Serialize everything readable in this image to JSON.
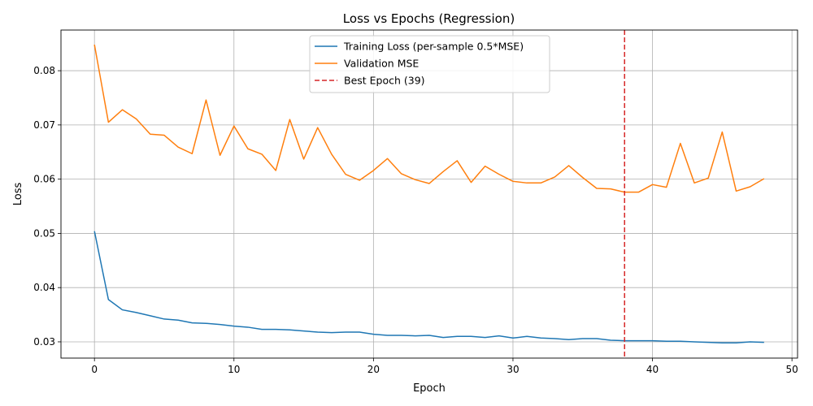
{
  "chart_data": {
    "type": "line",
    "title": "Loss vs Epochs (Regression)",
    "xlabel": "Epoch",
    "ylabel": "Loss",
    "xlim": [
      -2.4,
      50.4
    ],
    "ylim": [
      0.027,
      0.0875
    ],
    "xticks": [
      0,
      10,
      20,
      30,
      40,
      50
    ],
    "yticks": [
      0.03,
      0.04,
      0.05,
      0.06,
      0.07,
      0.08
    ],
    "ytick_labels": [
      "0.03",
      "0.04",
      "0.05",
      "0.06",
      "0.07",
      "0.08"
    ],
    "grid": true,
    "legend_position": "top-center",
    "x": [
      0,
      1,
      2,
      3,
      4,
      5,
      6,
      7,
      8,
      9,
      10,
      11,
      12,
      13,
      14,
      15,
      16,
      17,
      18,
      19,
      20,
      21,
      22,
      23,
      24,
      25,
      26,
      27,
      28,
      29,
      30,
      31,
      32,
      33,
      34,
      35,
      36,
      37,
      38,
      39,
      40,
      41,
      42,
      43,
      44,
      45,
      46,
      47,
      48
    ],
    "series": [
      {
        "name": "Training Loss (per-sample 0.5*MSE)",
        "color": "#1f77b4",
        "style": "solid",
        "values": [
          0.0504,
          0.0378,
          0.0359,
          0.0354,
          0.0348,
          0.0342,
          0.034,
          0.0335,
          0.0334,
          0.0332,
          0.0329,
          0.0327,
          0.0323,
          0.0323,
          0.0322,
          0.032,
          0.0318,
          0.0317,
          0.0318,
          0.0318,
          0.0314,
          0.0312,
          0.0312,
          0.0311,
          0.0312,
          0.0308,
          0.031,
          0.031,
          0.0308,
          0.0311,
          0.0307,
          0.031,
          0.0307,
          0.0306,
          0.0304,
          0.0306,
          0.0306,
          0.0303,
          0.0302,
          0.0302,
          0.0302,
          0.0301,
          0.0301,
          0.03,
          0.0299,
          0.0298,
          0.0298,
          0.03,
          0.0299
        ]
      },
      {
        "name": "Validation MSE",
        "color": "#ff7f0e",
        "style": "solid",
        "values": [
          0.0848,
          0.0705,
          0.0728,
          0.0711,
          0.0683,
          0.0681,
          0.0659,
          0.0647,
          0.0746,
          0.0644,
          0.0698,
          0.0656,
          0.0646,
          0.0616,
          0.071,
          0.0637,
          0.0695,
          0.0646,
          0.0609,
          0.0598,
          0.0616,
          0.0638,
          0.061,
          0.0599,
          0.0592,
          0.0614,
          0.0634,
          0.0594,
          0.0624,
          0.0609,
          0.0596,
          0.0593,
          0.0593,
          0.0604,
          0.0625,
          0.0603,
          0.0583,
          0.0582,
          0.0576,
          0.0576,
          0.059,
          0.0585,
          0.0666,
          0.0593,
          0.0602,
          0.0687,
          0.0578,
          0.0586,
          0.0601
        ]
      }
    ],
    "vlines": [
      {
        "name": "Best Epoch (39)",
        "x": 38,
        "color": "#d62728",
        "style": "dashed"
      }
    ]
  }
}
